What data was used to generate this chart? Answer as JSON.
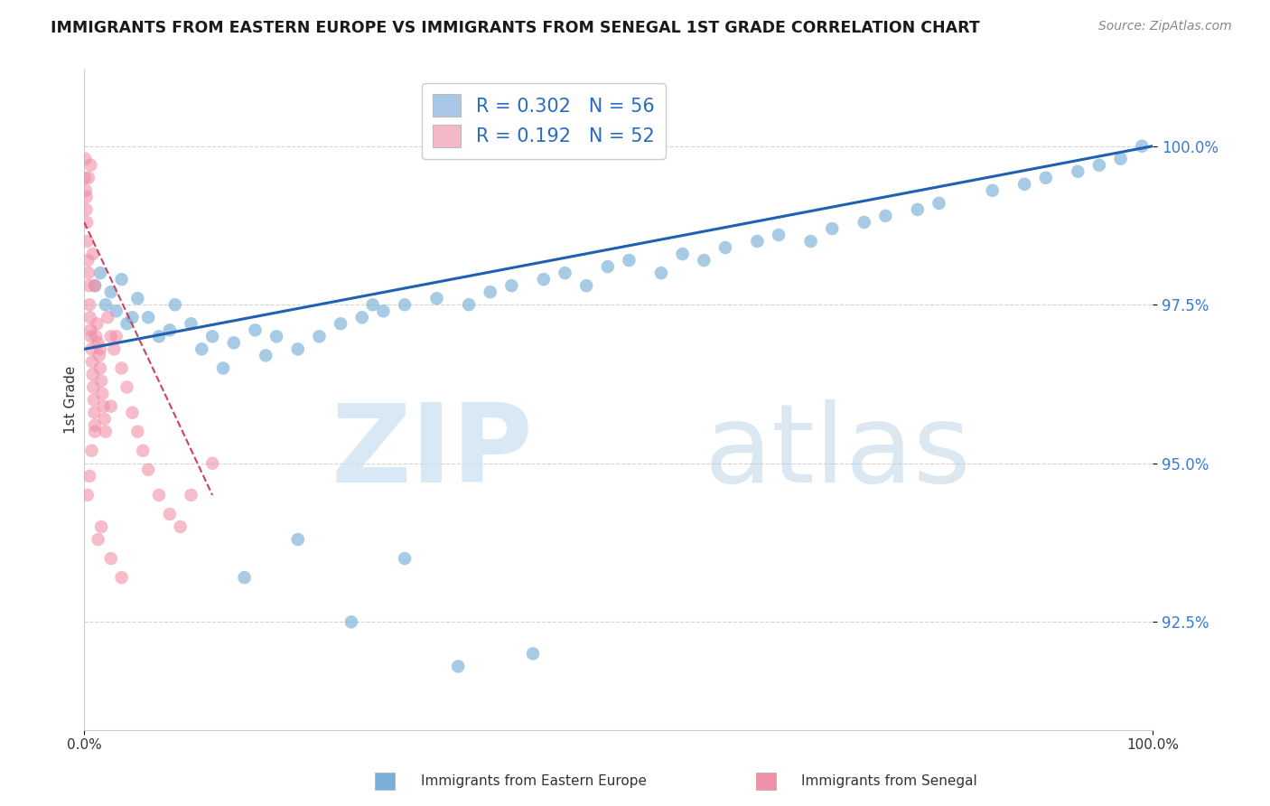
{
  "title": "IMMIGRANTS FROM EASTERN EUROPE VS IMMIGRANTS FROM SENEGAL 1ST GRADE CORRELATION CHART",
  "source": "Source: ZipAtlas.com",
  "ylabel": "1st Grade",
  "xlim": [
    0.0,
    100.0
  ],
  "ylim": [
    90.8,
    101.2
  ],
  "yticks": [
    92.5,
    95.0,
    97.5,
    100.0
  ],
  "ytick_labels": [
    "92.5%",
    "95.0%",
    "97.5%",
    "100.0%"
  ],
  "legend_entries": [
    {
      "label": "R = 0.302   N = 56",
      "color": "#a8c8e8"
    },
    {
      "label": "R = 0.192   N = 52",
      "color": "#f4b8c8"
    }
  ],
  "blue_color": "#7ab0d8",
  "pink_color": "#f090a8",
  "blue_line_color": "#2060b0",
  "pink_line_color": "#d04060",
  "blue_scatter_x": [
    1.0,
    1.5,
    2.0,
    2.5,
    3.0,
    3.5,
    4.0,
    5.0,
    6.0,
    7.0,
    8.0,
    10.0,
    11.0,
    12.0,
    14.0,
    16.0,
    18.0,
    20.0,
    22.0,
    24.0,
    26.0,
    28.0,
    30.0,
    33.0,
    36.0,
    38.0,
    40.0,
    43.0,
    45.0,
    47.0,
    49.0,
    51.0,
    54.0,
    56.0,
    58.0,
    60.0,
    63.0,
    65.0,
    68.0,
    70.0,
    73.0,
    75.0,
    78.0,
    80.0,
    85.0,
    88.0,
    90.0,
    93.0,
    95.0,
    97.0,
    99.0,
    4.5,
    8.5,
    13.0,
    17.0,
    27.0
  ],
  "blue_scatter_y": [
    97.8,
    98.0,
    97.5,
    97.7,
    97.4,
    97.9,
    97.2,
    97.6,
    97.3,
    97.0,
    97.1,
    97.2,
    96.8,
    97.0,
    96.9,
    97.1,
    97.0,
    96.8,
    97.0,
    97.2,
    97.3,
    97.4,
    97.5,
    97.6,
    97.5,
    97.7,
    97.8,
    97.9,
    98.0,
    97.8,
    98.1,
    98.2,
    98.0,
    98.3,
    98.2,
    98.4,
    98.5,
    98.6,
    98.5,
    98.7,
    98.8,
    98.9,
    99.0,
    99.1,
    99.3,
    99.4,
    99.5,
    99.6,
    99.7,
    99.8,
    100.0,
    97.3,
    97.5,
    96.5,
    96.7,
    97.5
  ],
  "blue_scatter_x2": [
    15.0,
    20.0,
    25.0,
    30.0,
    35.0,
    42.0
  ],
  "blue_scatter_y2": [
    93.2,
    93.8,
    92.5,
    93.5,
    91.8,
    92.0
  ],
  "pink_scatter_x": [
    0.05,
    0.1,
    0.15,
    0.2,
    0.25,
    0.3,
    0.35,
    0.4,
    0.45,
    0.5,
    0.55,
    0.6,
    0.65,
    0.7,
    0.75,
    0.8,
    0.85,
    0.9,
    0.95,
    1.0,
    1.1,
    1.2,
    1.3,
    1.4,
    1.5,
    1.6,
    1.7,
    1.8,
    1.9,
    2.0,
    2.2,
    2.5,
    2.8,
    3.0,
    3.5,
    4.0,
    4.5,
    5.0,
    5.5,
    6.0,
    7.0,
    8.0,
    9.0,
    10.0,
    12.0,
    0.2,
    0.4,
    0.6,
    0.8,
    1.0,
    1.5,
    2.5
  ],
  "pink_scatter_y": [
    99.5,
    99.8,
    99.3,
    99.0,
    98.8,
    98.5,
    98.2,
    98.0,
    97.8,
    97.5,
    97.3,
    97.1,
    97.0,
    96.8,
    96.6,
    96.4,
    96.2,
    96.0,
    95.8,
    95.6,
    97.0,
    97.2,
    96.9,
    96.7,
    96.5,
    96.3,
    96.1,
    95.9,
    95.7,
    95.5,
    97.3,
    97.0,
    96.8,
    97.0,
    96.5,
    96.2,
    95.8,
    95.5,
    95.2,
    94.9,
    94.5,
    94.2,
    94.0,
    94.5,
    95.0,
    99.2,
    99.5,
    99.7,
    98.3,
    97.8,
    96.8,
    95.9
  ],
  "pink_scatter_x2": [
    0.3,
    0.5,
    0.7,
    1.0,
    1.3,
    1.6,
    2.5,
    3.5
  ],
  "pink_scatter_y2": [
    94.5,
    94.8,
    95.2,
    95.5,
    93.8,
    94.0,
    93.5,
    93.2
  ],
  "blue_line_x": [
    0.0,
    100.0
  ],
  "blue_line_y": [
    96.8,
    100.0
  ],
  "pink_line_x": [
    0.0,
    12.0
  ],
  "pink_line_y": [
    98.8,
    94.5
  ]
}
